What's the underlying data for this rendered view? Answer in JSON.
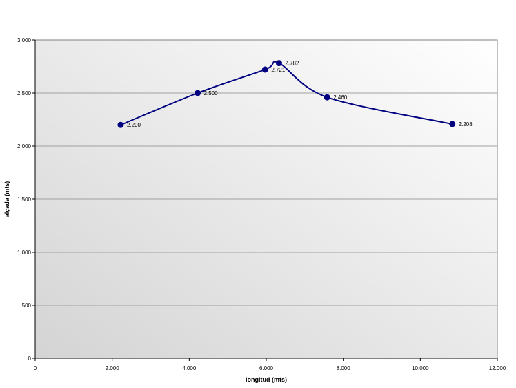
{
  "chart_data": {
    "type": "line",
    "title": "",
    "xlabel": "longitud (mts)",
    "ylabel": "alçada (mts)",
    "xlim": [
      0,
      12000
    ],
    "ylim": [
      0,
      3000
    ],
    "x_ticks": [
      0,
      2000,
      4000,
      6000,
      8000,
      10000,
      12000
    ],
    "x_tick_labels": [
      "0",
      "2.000",
      "4.000",
      "6.000",
      "8.000",
      "10.000",
      "12.000"
    ],
    "y_ticks": [
      0,
      500,
      1000,
      1500,
      2000,
      2500,
      3000
    ],
    "y_tick_labels": [
      "0",
      "500",
      "1.000",
      "1.500",
      "2.000",
      "2.500",
      "3.000"
    ],
    "grid": "horizontal",
    "legend": "none",
    "smooth": true,
    "series": [
      {
        "x": [
          2220,
          4220,
          5970,
          6330,
          7580,
          10830
        ],
        "y": [
          2200,
          2500,
          2721,
          2782,
          2460,
          2208
        ],
        "labels": [
          "2.200",
          "2.500",
          "2.721",
          "2.782",
          "2.460",
          "2.208"
        ],
        "color": "#000080"
      }
    ]
  }
}
